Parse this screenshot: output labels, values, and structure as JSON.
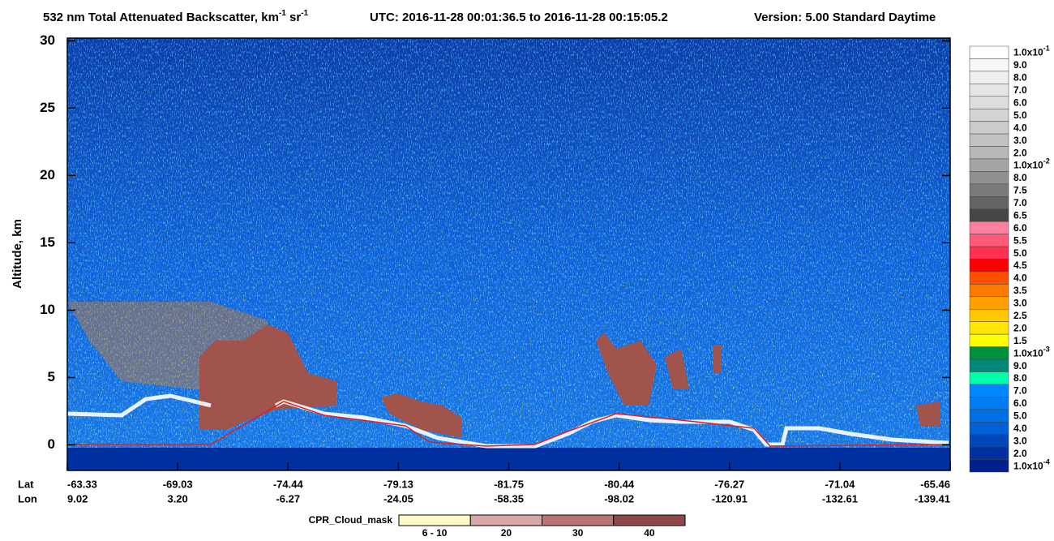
{
  "chart_data": {
    "type": "heatmap",
    "title": {
      "main": "532 nm Total Attenuated Backscatter, km",
      "sup1": "-1",
      "mid": " sr",
      "sup2": "-1",
      "utc": "UTC:  2016-11-28 00:01:36.5  to  2016-11-28 00:15:05.2",
      "version": "Version: 5.00  Standard  Daytime"
    },
    "y_label": "Altitude, km",
    "ylim": [
      -1.9,
      30.2
    ],
    "yticks": [
      0,
      5,
      10,
      15,
      20,
      25,
      30
    ],
    "x_rows": [
      {
        "name": "Lat",
        "labels": [
          "-63.33",
          "-69.03",
          "-74.44",
          "-79.13",
          "-81.75",
          "-80.44",
          "-76.27",
          "-71.04",
          "-65.46"
        ]
      },
      {
        "name": "Lon",
        "labels": [
          "9.02",
          "3.20",
          "-6.27",
          "-24.05",
          "-58.35",
          "-98.02",
          "-120.91",
          "-132.61",
          "-139.41"
        ]
      }
    ],
    "colorbar": [
      {
        "text": "1.0x10",
        "exp": "-1",
        "color": "#ffffff"
      },
      {
        "text": "9.0",
        "color": "#f8f8f8"
      },
      {
        "text": "8.0",
        "color": "#efefef"
      },
      {
        "text": "7.0",
        "color": "#e6e6e6"
      },
      {
        "text": "6.0",
        "color": "#dddddd"
      },
      {
        "text": "5.0",
        "color": "#d4d4d4"
      },
      {
        "text": "4.0",
        "color": "#cbcbcb"
      },
      {
        "text": "3.0",
        "color": "#c2c2c2"
      },
      {
        "text": "2.0",
        "color": "#b8b8b8"
      },
      {
        "text": "1.0x10",
        "exp": "-2",
        "color": "#a4a4a4"
      },
      {
        "text": "8.0",
        "color": "#909090"
      },
      {
        "text": "7.5",
        "color": "#7a7a7a"
      },
      {
        "text": "7.0",
        "color": "#646464"
      },
      {
        "text": "6.5",
        "color": "#464646"
      },
      {
        "text": "6.0",
        "color": "#ff7fa0"
      },
      {
        "text": "5.5",
        "color": "#ff5a7a"
      },
      {
        "text": "5.0",
        "color": "#ff3050"
      },
      {
        "text": "4.5",
        "color": "#ff0000"
      },
      {
        "text": "4.0",
        "color": "#ff5000"
      },
      {
        "text": "3.5",
        "color": "#ff7800"
      },
      {
        "text": "3.0",
        "color": "#ffa000"
      },
      {
        "text": "2.5",
        "color": "#ffc800"
      },
      {
        "text": "2.0",
        "color": "#ffe600"
      },
      {
        "text": "1.5",
        "color": "#ffff00"
      },
      {
        "text": "1.0x10",
        "exp": "-3",
        "color": "#009040"
      },
      {
        "text": "9.0",
        "color": "#008878"
      },
      {
        "text": "8.0",
        "color": "#00ffaa"
      },
      {
        "text": "7.0",
        "color": "#0088ff"
      },
      {
        "text": "6.0",
        "color": "#007cf4"
      },
      {
        "text": "5.0",
        "color": "#0070e6"
      },
      {
        "text": "4.0",
        "color": "#0060d6"
      },
      {
        "text": "3.0",
        "color": "#0048b8"
      },
      {
        "text": "2.0",
        "color": "#0030a0"
      },
      {
        "text": "1.0x10",
        "exp": "-4",
        "color": "#002090"
      }
    ],
    "cpr_legend": {
      "title": "CPR_Cloud_mask",
      "items": [
        {
          "label": "6 - 10",
          "color": "#fffac8"
        },
        {
          "label": "20",
          "color": "#d8a8a8"
        },
        {
          "label": "30",
          "color": "#b87474"
        },
        {
          "label": "40",
          "color": "#904848"
        }
      ]
    }
  }
}
